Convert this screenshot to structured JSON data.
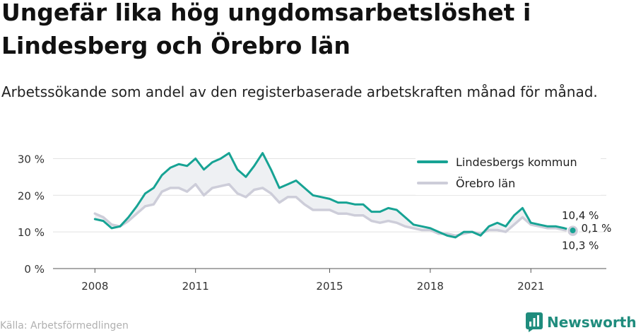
{
  "title": "Ungefär lika hög ungdomsarbetslöshet i Lindesberg och Örebro län",
  "subtitle": "Arbetssökande som andel av den registerbaserade arbetskraften månad för månad.",
  "source": "Källa: Arbetsförmedlingen",
  "brand": "Newsworthy",
  "colors": {
    "lindesberg": "#17a394",
    "orebro": "#cdcdd9",
    "fill": "#eef0f3",
    "brand": "#1f8c7d"
  },
  "chart_data": {
    "type": "line",
    "x_unit": "year",
    "xlim": [
      2006.75,
      2023.25
    ],
    "ylim": [
      0,
      32
    ],
    "yticks": [
      0,
      10,
      20,
      30
    ],
    "ytick_labels": [
      "0 %",
      "10 %",
      "20 %",
      "30 %"
    ],
    "xticks": [
      2008,
      2011,
      2015,
      2018,
      2021
    ],
    "xtick_labels": [
      "2008",
      "2011",
      "2015",
      "2018",
      "2021"
    ],
    "grid": true,
    "legend_position": "top-right",
    "series": [
      {
        "name": "Lindesbergs kommun",
        "color": "#17a394",
        "points": [
          [
            2008.0,
            13.5
          ],
          [
            2008.25,
            13.0
          ],
          [
            2008.5,
            11.0
          ],
          [
            2008.75,
            11.5
          ],
          [
            2009.0,
            14.0
          ],
          [
            2009.25,
            17.0
          ],
          [
            2009.5,
            20.5
          ],
          [
            2009.75,
            22.0
          ],
          [
            2010.0,
            25.5
          ],
          [
            2010.25,
            27.5
          ],
          [
            2010.5,
            28.5
          ],
          [
            2010.75,
            28.0
          ],
          [
            2011.0,
            30.0
          ],
          [
            2011.25,
            27.0
          ],
          [
            2011.5,
            29.0
          ],
          [
            2011.75,
            30.0
          ],
          [
            2012.0,
            31.5
          ],
          [
            2012.25,
            27.0
          ],
          [
            2012.5,
            25.0
          ],
          [
            2012.75,
            28.0
          ],
          [
            2013.0,
            31.5
          ],
          [
            2013.25,
            27.0
          ],
          [
            2013.5,
            22.0
          ],
          [
            2013.75,
            23.0
          ],
          [
            2014.0,
            24.0
          ],
          [
            2014.25,
            22.0
          ],
          [
            2014.5,
            20.0
          ],
          [
            2014.75,
            19.5
          ],
          [
            2015.0,
            19.0
          ],
          [
            2015.25,
            18.0
          ],
          [
            2015.5,
            18.0
          ],
          [
            2015.75,
            17.5
          ],
          [
            2016.0,
            17.5
          ],
          [
            2016.25,
            15.5
          ],
          [
            2016.5,
            15.5
          ],
          [
            2016.75,
            16.5
          ],
          [
            2017.0,
            16.0
          ],
          [
            2017.25,
            14.0
          ],
          [
            2017.5,
            12.0
          ],
          [
            2017.75,
            11.5
          ],
          [
            2018.0,
            11.0
          ],
          [
            2018.25,
            10.0
          ],
          [
            2018.5,
            9.0
          ],
          [
            2018.75,
            8.5
          ],
          [
            2019.0,
            10.0
          ],
          [
            2019.25,
            10.0
          ],
          [
            2019.5,
            9.0
          ],
          [
            2019.75,
            11.5
          ],
          [
            2020.0,
            12.5
          ],
          [
            2020.25,
            11.5
          ],
          [
            2020.5,
            14.5
          ],
          [
            2020.75,
            16.5
          ],
          [
            2021.0,
            12.5
          ],
          [
            2021.25,
            12.0
          ],
          [
            2021.5,
            11.5
          ],
          [
            2021.75,
            11.5
          ],
          [
            2022.0,
            11.0
          ],
          [
            2022.25,
            10.4
          ]
        ]
      },
      {
        "name": "Örebro län",
        "color": "#cdcdd9",
        "points": [
          [
            2008.0,
            15.0
          ],
          [
            2008.25,
            14.0
          ],
          [
            2008.5,
            12.0
          ],
          [
            2008.75,
            11.5
          ],
          [
            2009.0,
            13.0
          ],
          [
            2009.25,
            15.0
          ],
          [
            2009.5,
            17.0
          ],
          [
            2009.75,
            17.5
          ],
          [
            2010.0,
            21.0
          ],
          [
            2010.25,
            22.0
          ],
          [
            2010.5,
            22.0
          ],
          [
            2010.75,
            21.0
          ],
          [
            2011.0,
            23.0
          ],
          [
            2011.25,
            20.0
          ],
          [
            2011.5,
            22.0
          ],
          [
            2011.75,
            22.5
          ],
          [
            2012.0,
            23.0
          ],
          [
            2012.25,
            20.5
          ],
          [
            2012.5,
            19.5
          ],
          [
            2012.75,
            21.5
          ],
          [
            2013.0,
            22.0
          ],
          [
            2013.25,
            20.5
          ],
          [
            2013.5,
            18.0
          ],
          [
            2013.75,
            19.5
          ],
          [
            2014.0,
            19.5
          ],
          [
            2014.25,
            17.5
          ],
          [
            2014.5,
            16.0
          ],
          [
            2014.75,
            16.0
          ],
          [
            2015.0,
            16.0
          ],
          [
            2015.25,
            15.0
          ],
          [
            2015.5,
            15.0
          ],
          [
            2015.75,
            14.5
          ],
          [
            2016.0,
            14.5
          ],
          [
            2016.25,
            13.0
          ],
          [
            2016.5,
            12.5
          ],
          [
            2016.75,
            13.0
          ],
          [
            2017.0,
            12.5
          ],
          [
            2017.25,
            11.5
          ],
          [
            2017.5,
            11.0
          ],
          [
            2017.75,
            10.5
          ],
          [
            2018.0,
            10.5
          ],
          [
            2018.25,
            9.5
          ],
          [
            2018.5,
            9.5
          ],
          [
            2018.75,
            9.0
          ],
          [
            2019.0,
            9.5
          ],
          [
            2019.25,
            10.0
          ],
          [
            2019.5,
            9.5
          ],
          [
            2019.75,
            10.5
          ],
          [
            2020.0,
            10.5
          ],
          [
            2020.25,
            10.0
          ],
          [
            2020.5,
            12.0
          ],
          [
            2020.75,
            14.0
          ],
          [
            2021.0,
            12.0
          ],
          [
            2021.25,
            11.5
          ],
          [
            2021.5,
            11.0
          ],
          [
            2021.75,
            11.0
          ],
          [
            2022.0,
            10.5
          ],
          [
            2022.25,
            10.3
          ]
        ]
      }
    ],
    "annotations": {
      "lindesberg_last": "10,4 %",
      "difference": "0,1 %",
      "orebro_last": "10,3 %"
    }
  }
}
